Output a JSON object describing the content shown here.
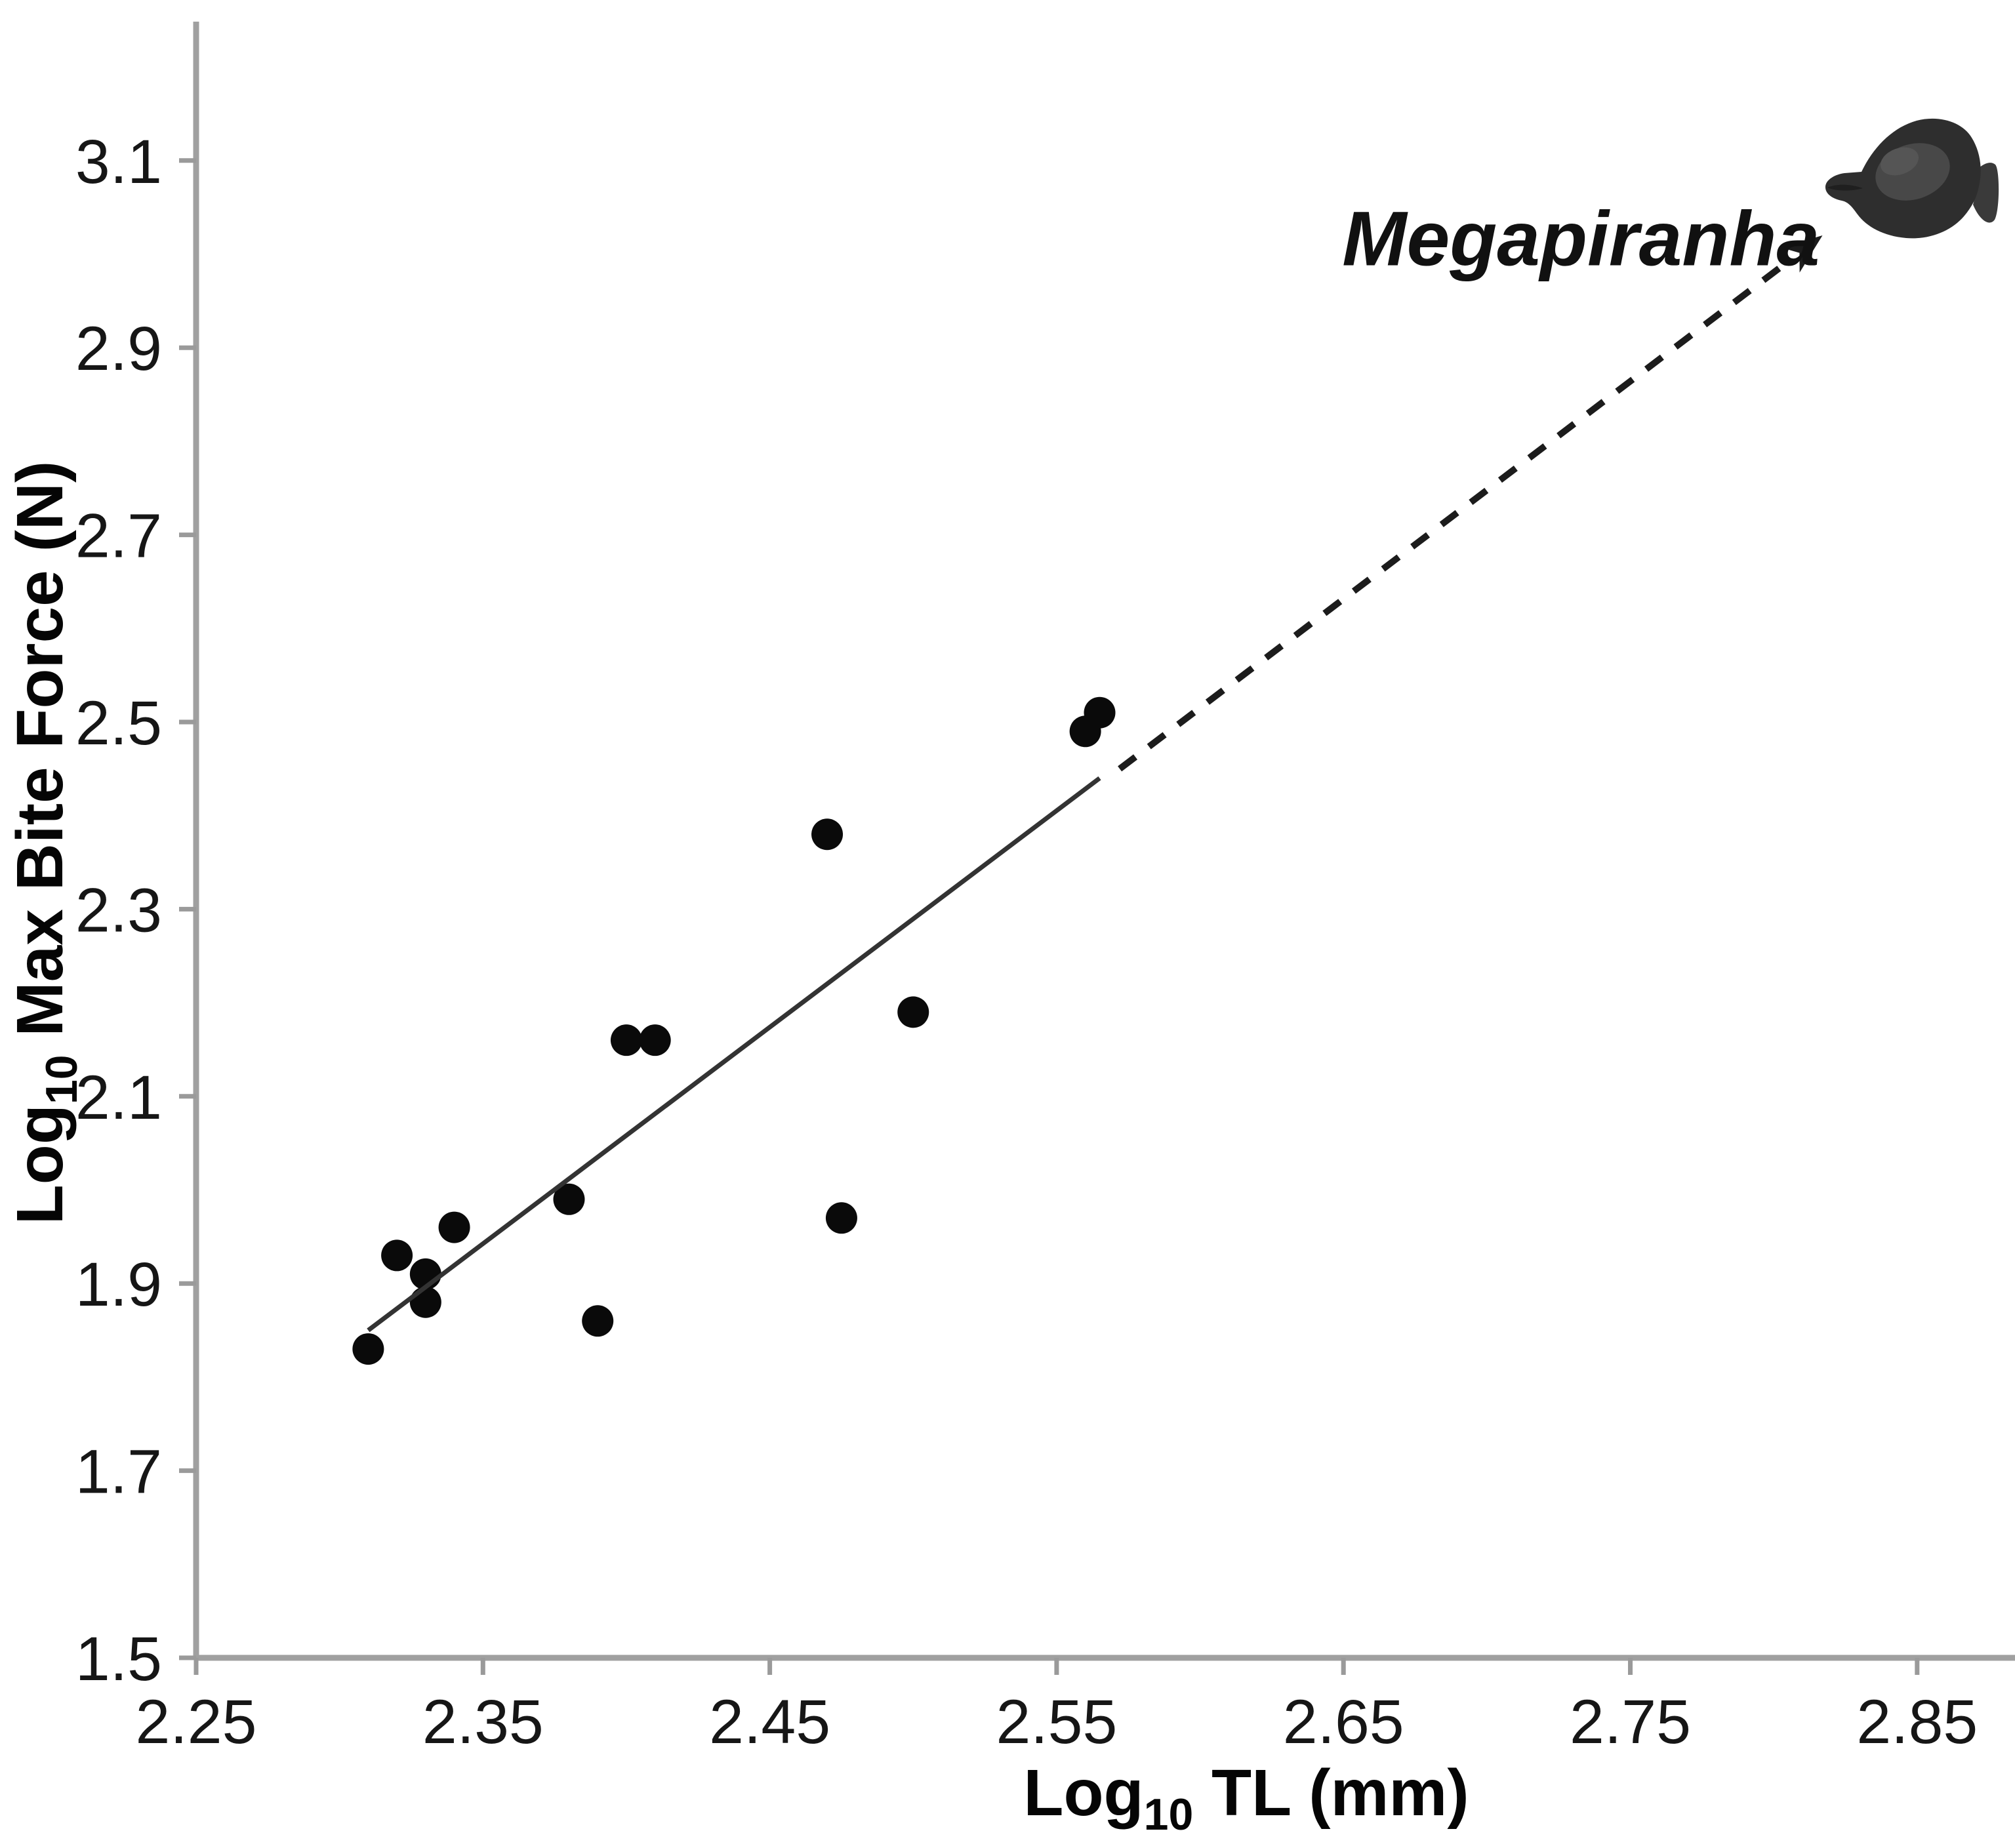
{
  "chart_data": {
    "type": "scatter",
    "title": "",
    "xlabel_parts": {
      "prefix": "Log",
      "sub": "10",
      "rest": " TL (mm)"
    },
    "ylabel_parts": {
      "prefix": "Log",
      "sub": "10",
      "rest": " Max Bite Force (N)"
    },
    "xlim": [
      2.25,
      2.885
    ],
    "ylim": [
      1.5,
      3.25
    ],
    "grid": false,
    "legend": "none",
    "x_ticks": [
      2.25,
      2.35,
      2.45,
      2.55,
      2.65,
      2.75,
      2.85
    ],
    "x_tick_labels": [
      "2.25",
      "2.35",
      "2.45",
      "2.55",
      "2.65",
      "2.75",
      "2.85"
    ],
    "y_ticks": [
      1.5,
      1.7,
      1.9,
      2.1,
      2.3,
      2.5,
      2.7,
      2.9,
      3.1
    ],
    "y_tick_labels": [
      "1.5",
      "1.7",
      "1.9",
      "2.1",
      "2.3",
      "2.5",
      "2.7",
      "2.9",
      "3.1"
    ],
    "points": [
      {
        "x": 2.31,
        "y": 1.83
      },
      {
        "x": 2.32,
        "y": 1.93
      },
      {
        "x": 2.33,
        "y": 1.91
      },
      {
        "x": 2.33,
        "y": 1.88
      },
      {
        "x": 2.34,
        "y": 1.96
      },
      {
        "x": 2.38,
        "y": 1.99
      },
      {
        "x": 2.39,
        "y": 1.86
      },
      {
        "x": 2.4,
        "y": 2.16
      },
      {
        "x": 2.41,
        "y": 2.16
      },
      {
        "x": 2.47,
        "y": 2.38
      },
      {
        "x": 2.475,
        "y": 1.97
      },
      {
        "x": 2.5,
        "y": 2.19
      },
      {
        "x": 2.56,
        "y": 2.49
      },
      {
        "x": 2.565,
        "y": 2.51
      }
    ],
    "trendline_solid": {
      "x1": 2.31,
      "y1": 1.85,
      "x2": 2.565,
      "y2": 2.44
    },
    "extrapolation_arrow_dashed": {
      "x1": 2.572,
      "y1": 2.45,
      "x2": 2.817,
      "y2": 3.02
    },
    "annotation": {
      "label": "Megapiranha",
      "anchor_x": 2.816,
      "anchor_y": 2.988,
      "fish_icon": "piranha-silhouette"
    }
  },
  "colors": {
    "background": "#ffffff",
    "axis": "#a0a0a0",
    "tick": "#9a9a9a",
    "point": "#0a0a0a",
    "trendline": "#333333",
    "arrow": "#1c1c1c",
    "text": "#111111",
    "fish_body": "#2e2e2e",
    "fish_highlight": "#484848",
    "fish_tail": "#3a3a3a"
  }
}
